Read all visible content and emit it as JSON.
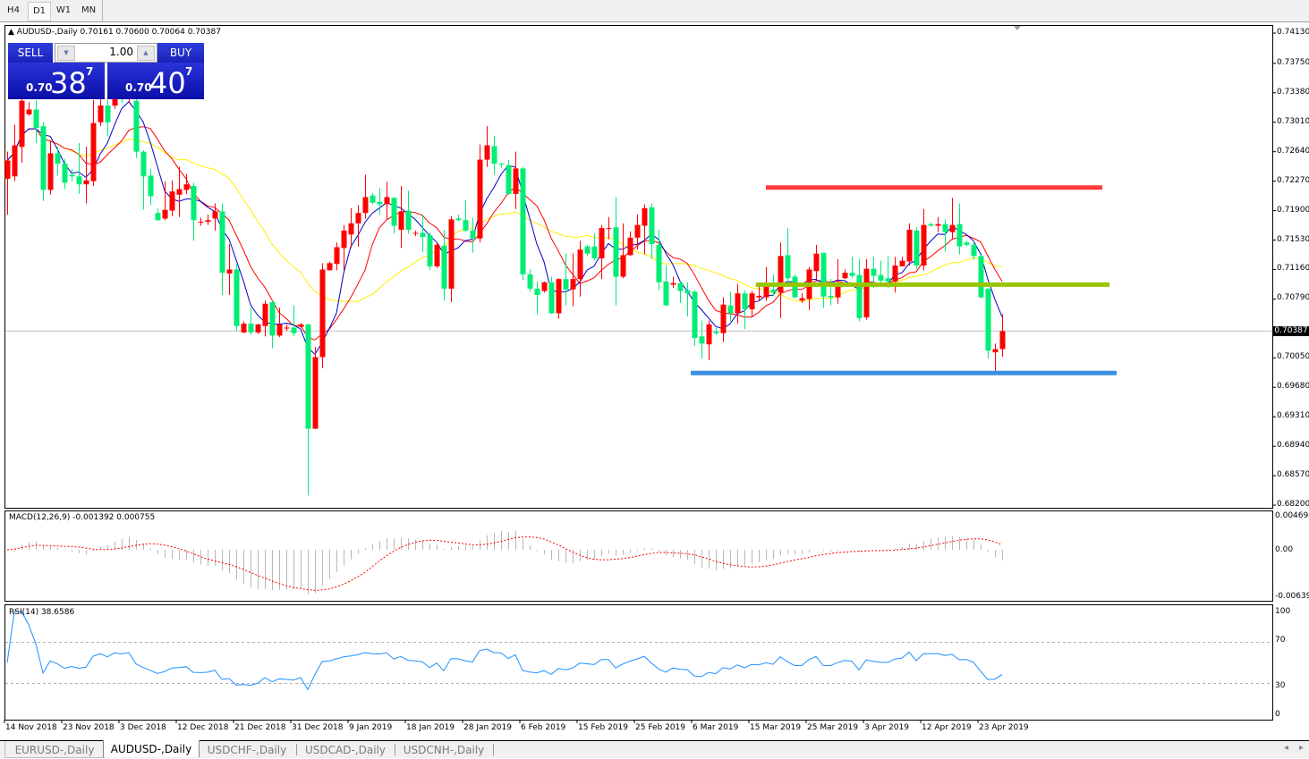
{
  "toolbar": {
    "timeframes": [
      {
        "label": "H4",
        "active": false
      },
      {
        "label": "D1",
        "active": true
      },
      {
        "label": "W1",
        "active": false
      },
      {
        "label": "MN",
        "active": false
      }
    ]
  },
  "chart": {
    "symbol_header": "AUDUSD-,Daily",
    "ohlc_header": "0.70161 0.70600 0.70064 0.70387",
    "current_price": "0.70387",
    "current_price_value": 0.70387,
    "colors": {
      "up_candle": "#ff0000",
      "down_candle": "#00ee76",
      "ma_fast": "#0000cc",
      "ma_mid": "#ff0000",
      "ma_slow": "#ffee00",
      "resistance_line": "#ff3b3b",
      "pivot_line": "#99c400",
      "support_line": "#3a90e0",
      "macd_histogram": "#b8b8b8",
      "macd_signal": "#ff0000",
      "rsi_line": "#1e90ff"
    },
    "price_axis": [
      "0.74130",
      "0.73750",
      "0.73380",
      "0.73010",
      "0.72640",
      "0.72270",
      "0.71900",
      "0.71530",
      "0.71160",
      "0.70790",
      "0.70050",
      "0.69680",
      "0.69310",
      "0.68940",
      "0.68570",
      "0.68200"
    ],
    "horizontal_levels": {
      "resistance": 0.7219,
      "pivot": 0.7097,
      "support": 0.6986
    },
    "time_axis": [
      "14 Nov 2018",
      "23 Nov 2018",
      "3 Dec 2018",
      "12 Dec 2018",
      "21 Dec 2018",
      "31 Dec 2018",
      "9 Jan 2019",
      "18 Jan 2019",
      "28 Jan 2019",
      "6 Feb 2019",
      "15 Feb 2019",
      "25 Feb 2019",
      "6 Mar 2019",
      "15 Mar 2019",
      "25 Mar 2019",
      "3 Apr 2019",
      "12 Apr 2019",
      "23 Apr 2019"
    ],
    "candles_ohlc": [
      [
        0.723,
        0.7264,
        0.7185,
        0.7253
      ],
      [
        0.7233,
        0.7298,
        0.7227,
        0.7272
      ],
      [
        0.727,
        0.7337,
        0.725,
        0.7328
      ],
      [
        0.7311,
        0.7326,
        0.7309,
        0.7317
      ],
      [
        0.7317,
        0.7329,
        0.7275,
        0.7294
      ],
      [
        0.7296,
        0.7301,
        0.7202,
        0.7216
      ],
      [
        0.7216,
        0.7278,
        0.721,
        0.7262
      ],
      [
        0.7262,
        0.727,
        0.7234,
        0.7249
      ],
      [
        0.7249,
        0.7255,
        0.7217,
        0.7225
      ],
      [
        0.7235,
        0.7242,
        0.7227,
        0.7233
      ],
      [
        0.7233,
        0.7275,
        0.7211,
        0.7223
      ],
      [
        0.7223,
        0.727,
        0.7199,
        0.7228
      ],
      [
        0.7227,
        0.7329,
        0.7221,
        0.73
      ],
      [
        0.7301,
        0.7331,
        0.7296,
        0.7322
      ],
      [
        0.7322,
        0.7329,
        0.7283,
        0.7301
      ],
      [
        0.7322,
        0.7348,
        0.7318,
        0.7337
      ],
      [
        0.7337,
        0.735,
        0.7325,
        0.7331
      ],
      [
        0.7331,
        0.7354,
        0.7325,
        0.7343
      ],
      [
        0.7328,
        0.7334,
        0.7256,
        0.7264
      ],
      [
        0.7264,
        0.7266,
        0.7191,
        0.7233
      ],
      [
        0.7234,
        0.7242,
        0.7197,
        0.7208
      ],
      [
        0.7187,
        0.7193,
        0.7177,
        0.7178
      ],
      [
        0.718,
        0.7227,
        0.7178,
        0.7191
      ],
      [
        0.719,
        0.7228,
        0.7183,
        0.7214
      ],
      [
        0.721,
        0.7245,
        0.7182,
        0.7217
      ],
      [
        0.7216,
        0.7236,
        0.7211,
        0.7223
      ],
      [
        0.7221,
        0.7225,
        0.7152,
        0.7178
      ],
      [
        0.7176,
        0.7181,
        0.7171,
        0.7176
      ],
      [
        0.7176,
        0.7185,
        0.7172,
        0.7178
      ],
      [
        0.718,
        0.7199,
        0.7165,
        0.7189
      ],
      [
        0.7189,
        0.7199,
        0.7084,
        0.7112
      ],
      [
        0.7111,
        0.7148,
        0.7084,
        0.7116
      ],
      [
        0.7116,
        0.7123,
        0.7039,
        0.7045
      ],
      [
        0.7037,
        0.7051,
        0.7036,
        0.7048
      ],
      [
        0.7048,
        0.7068,
        0.7034,
        0.7037
      ],
      [
        0.7037,
        0.7048,
        0.7035,
        0.7047
      ],
      [
        0.7045,
        0.7077,
        0.7032,
        0.7073
      ],
      [
        0.7075,
        0.7077,
        0.7017,
        0.7033
      ],
      [
        0.7033,
        0.7068,
        0.7031,
        0.7047
      ],
      [
        0.7043,
        0.7047,
        0.7039,
        0.7043
      ],
      [
        0.7043,
        0.7071,
        0.7032,
        0.7036
      ],
      [
        0.7044,
        0.7049,
        0.7043,
        0.7047
      ],
      [
        0.7047,
        0.7048,
        0.6832,
        0.6916
      ],
      [
        0.6916,
        0.7019,
        0.6916,
        0.7006
      ],
      [
        0.7006,
        0.7124,
        0.6992,
        0.7116
      ],
      [
        0.7115,
        0.7126,
        0.7115,
        0.7124
      ],
      [
        0.7123,
        0.715,
        0.7115,
        0.7144
      ],
      [
        0.7143,
        0.7172,
        0.7115,
        0.7165
      ],
      [
        0.716,
        0.7193,
        0.7143,
        0.7174
      ],
      [
        0.7174,
        0.7197,
        0.7145,
        0.7187
      ],
      [
        0.7187,
        0.7235,
        0.718,
        0.7207
      ],
      [
        0.7209,
        0.7212,
        0.7198,
        0.72
      ],
      [
        0.7201,
        0.7218,
        0.7185,
        0.7198
      ],
      [
        0.7198,
        0.7226,
        0.7179,
        0.7207
      ],
      [
        0.7206,
        0.7207,
        0.7161,
        0.7171
      ],
      [
        0.7166,
        0.7221,
        0.7143,
        0.7189
      ],
      [
        0.719,
        0.7215,
        0.7161,
        0.7166
      ],
      [
        0.7162,
        0.7165,
        0.7158,
        0.7162
      ],
      [
        0.7162,
        0.7185,
        0.7138,
        0.7157
      ],
      [
        0.7159,
        0.7163,
        0.7115,
        0.712
      ],
      [
        0.712,
        0.715,
        0.7118,
        0.7147
      ],
      [
        0.7146,
        0.7166,
        0.7077,
        0.7092
      ],
      [
        0.7092,
        0.7183,
        0.7075,
        0.7179
      ],
      [
        0.718,
        0.7185,
        0.7177,
        0.7178
      ],
      [
        0.7178,
        0.7203,
        0.7163,
        0.7165
      ],
      [
        0.7165,
        0.7181,
        0.7137,
        0.7155
      ],
      [
        0.7155,
        0.7273,
        0.715,
        0.7254
      ],
      [
        0.7254,
        0.7296,
        0.7245,
        0.7272
      ],
      [
        0.7271,
        0.7284,
        0.7235,
        0.7249
      ],
      [
        0.7249,
        0.725,
        0.7244,
        0.7248
      ],
      [
        0.7247,
        0.7254,
        0.721,
        0.7211
      ],
      [
        0.7211,
        0.7264,
        0.7192,
        0.7243
      ],
      [
        0.7243,
        0.7245,
        0.7103,
        0.711
      ],
      [
        0.711,
        0.7116,
        0.7088,
        0.7092
      ],
      [
        0.7092,
        0.7101,
        0.706,
        0.7084
      ],
      [
        0.7089,
        0.7101,
        0.7087,
        0.71
      ],
      [
        0.71,
        0.7107,
        0.706,
        0.7061
      ],
      [
        0.7061,
        0.7105,
        0.7054,
        0.7104
      ],
      [
        0.7104,
        0.7136,
        0.7071,
        0.7091
      ],
      [
        0.7091,
        0.7136,
        0.707,
        0.7104
      ],
      [
        0.7104,
        0.7152,
        0.7082,
        0.7141
      ],
      [
        0.7145,
        0.7147,
        0.7133,
        0.7136
      ],
      [
        0.7145,
        0.7161,
        0.7127,
        0.713
      ],
      [
        0.713,
        0.7172,
        0.7104,
        0.7168
      ],
      [
        0.7167,
        0.7182,
        0.7154,
        0.7168
      ],
      [
        0.7169,
        0.7207,
        0.7071,
        0.7107
      ],
      [
        0.7107,
        0.7174,
        0.7105,
        0.7134
      ],
      [
        0.7134,
        0.7164,
        0.7133,
        0.7156
      ],
      [
        0.7156,
        0.7185,
        0.7141,
        0.7172
      ],
      [
        0.7171,
        0.7198,
        0.7135,
        0.7193
      ],
      [
        0.7194,
        0.7199,
        0.7129,
        0.7148
      ],
      [
        0.7147,
        0.7166,
        0.709,
        0.71
      ],
      [
        0.7101,
        0.7121,
        0.707,
        0.7071
      ],
      [
        0.7097,
        0.7107,
        0.7093,
        0.7099
      ],
      [
        0.7099,
        0.7101,
        0.7074,
        0.7089
      ],
      [
        0.709,
        0.71,
        0.7057,
        0.7086
      ],
      [
        0.7088,
        0.709,
        0.702,
        0.703
      ],
      [
        0.7032,
        0.7052,
        0.7004,
        0.7023
      ],
      [
        0.7022,
        0.7052,
        0.7002,
        0.7047
      ],
      [
        0.7038,
        0.7043,
        0.7034,
        0.7036
      ],
      [
        0.7036,
        0.7081,
        0.7025,
        0.7072
      ],
      [
        0.7071,
        0.7088,
        0.7051,
        0.7061
      ],
      [
        0.7061,
        0.7098,
        0.7048,
        0.7086
      ],
      [
        0.7086,
        0.709,
        0.7041,
        0.7066
      ],
      [
        0.7066,
        0.7089,
        0.7056,
        0.7086
      ],
      [
        0.7081,
        0.7098,
        0.7077,
        0.7083
      ],
      [
        0.7081,
        0.7119,
        0.7077,
        0.7096
      ],
      [
        0.7091,
        0.711,
        0.7083,
        0.7087
      ],
      [
        0.7087,
        0.715,
        0.7055,
        0.7133
      ],
      [
        0.7134,
        0.7168,
        0.7098,
        0.7105
      ],
      [
        0.7107,
        0.711,
        0.708,
        0.7081
      ],
      [
        0.7077,
        0.7086,
        0.7074,
        0.708
      ],
      [
        0.7079,
        0.7119,
        0.7065,
        0.7116
      ],
      [
        0.7114,
        0.7147,
        0.7104,
        0.7136
      ],
      [
        0.7137,
        0.7137,
        0.7068,
        0.7082
      ],
      [
        0.7083,
        0.7104,
        0.7071,
        0.7081
      ],
      [
        0.7081,
        0.7129,
        0.7073,
        0.7099
      ],
      [
        0.7105,
        0.7116,
        0.7104,
        0.7112
      ],
      [
        0.7112,
        0.7132,
        0.7105,
        0.7108
      ],
      [
        0.7109,
        0.7129,
        0.7051,
        0.7055
      ],
      [
        0.7056,
        0.7129,
        0.7053,
        0.7117
      ],
      [
        0.7117,
        0.7132,
        0.7093,
        0.7108
      ],
      [
        0.7109,
        0.7127,
        0.7098,
        0.7102
      ],
      [
        0.7105,
        0.7133,
        0.7093,
        0.7101
      ],
      [
        0.7101,
        0.7132,
        0.7087,
        0.7121
      ],
      [
        0.712,
        0.7132,
        0.712,
        0.7127
      ],
      [
        0.7126,
        0.7174,
        0.7121,
        0.7166
      ],
      [
        0.7165,
        0.7169,
        0.7116,
        0.7121
      ],
      [
        0.7121,
        0.7192,
        0.7115,
        0.7172
      ],
      [
        0.7173,
        0.7175,
        0.717,
        0.7171
      ],
      [
        0.7171,
        0.7182,
        0.7163,
        0.7173
      ],
      [
        0.7173,
        0.7179,
        0.7138,
        0.7163
      ],
      [
        0.7163,
        0.7206,
        0.7155,
        0.7172
      ],
      [
        0.7173,
        0.7199,
        0.7135,
        0.7145
      ],
      [
        0.715,
        0.7152,
        0.7145,
        0.7147
      ],
      [
        0.7147,
        0.7151,
        0.7128,
        0.7133
      ],
      [
        0.7133,
        0.7134,
        0.708,
        0.7081
      ],
      [
        0.7092,
        0.7092,
        0.7004,
        0.7014
      ],
      [
        0.7012,
        0.7023,
        0.6988,
        0.7016
      ],
      [
        0.70161,
        0.706,
        0.70064,
        0.70387
      ]
    ]
  },
  "trade_panel": {
    "sell_label": "SELL",
    "buy_label": "BUY",
    "lot": "1.00",
    "sell_prefix": "0.70",
    "sell_big": "38",
    "sell_sup": "7",
    "buy_prefix": "0.70",
    "buy_big": "40",
    "buy_sup": "7",
    "down_arrow": "▼",
    "up_arrow": "▲"
  },
  "macd": {
    "label": "MACD(12,26,9) -0.001392 0.000755",
    "axis": [
      "0.004694",
      "0.00",
      "-0.00639"
    ]
  },
  "rsi": {
    "label": "RSI(14) 38.6586",
    "axis": [
      "100",
      "70",
      "30",
      "0"
    ]
  },
  "tabs": [
    {
      "label": "EURUSD-,Daily",
      "active": false
    },
    {
      "label": "AUDUSD-,Daily",
      "active": true
    },
    {
      "label": "USDCHF-,Daily",
      "active": false
    },
    {
      "label": "USDCAD-,Daily",
      "active": false
    },
    {
      "label": "USDCNH-,Daily",
      "active": false
    }
  ],
  "scroll": {
    "left": "◂",
    "right": "▸"
  }
}
